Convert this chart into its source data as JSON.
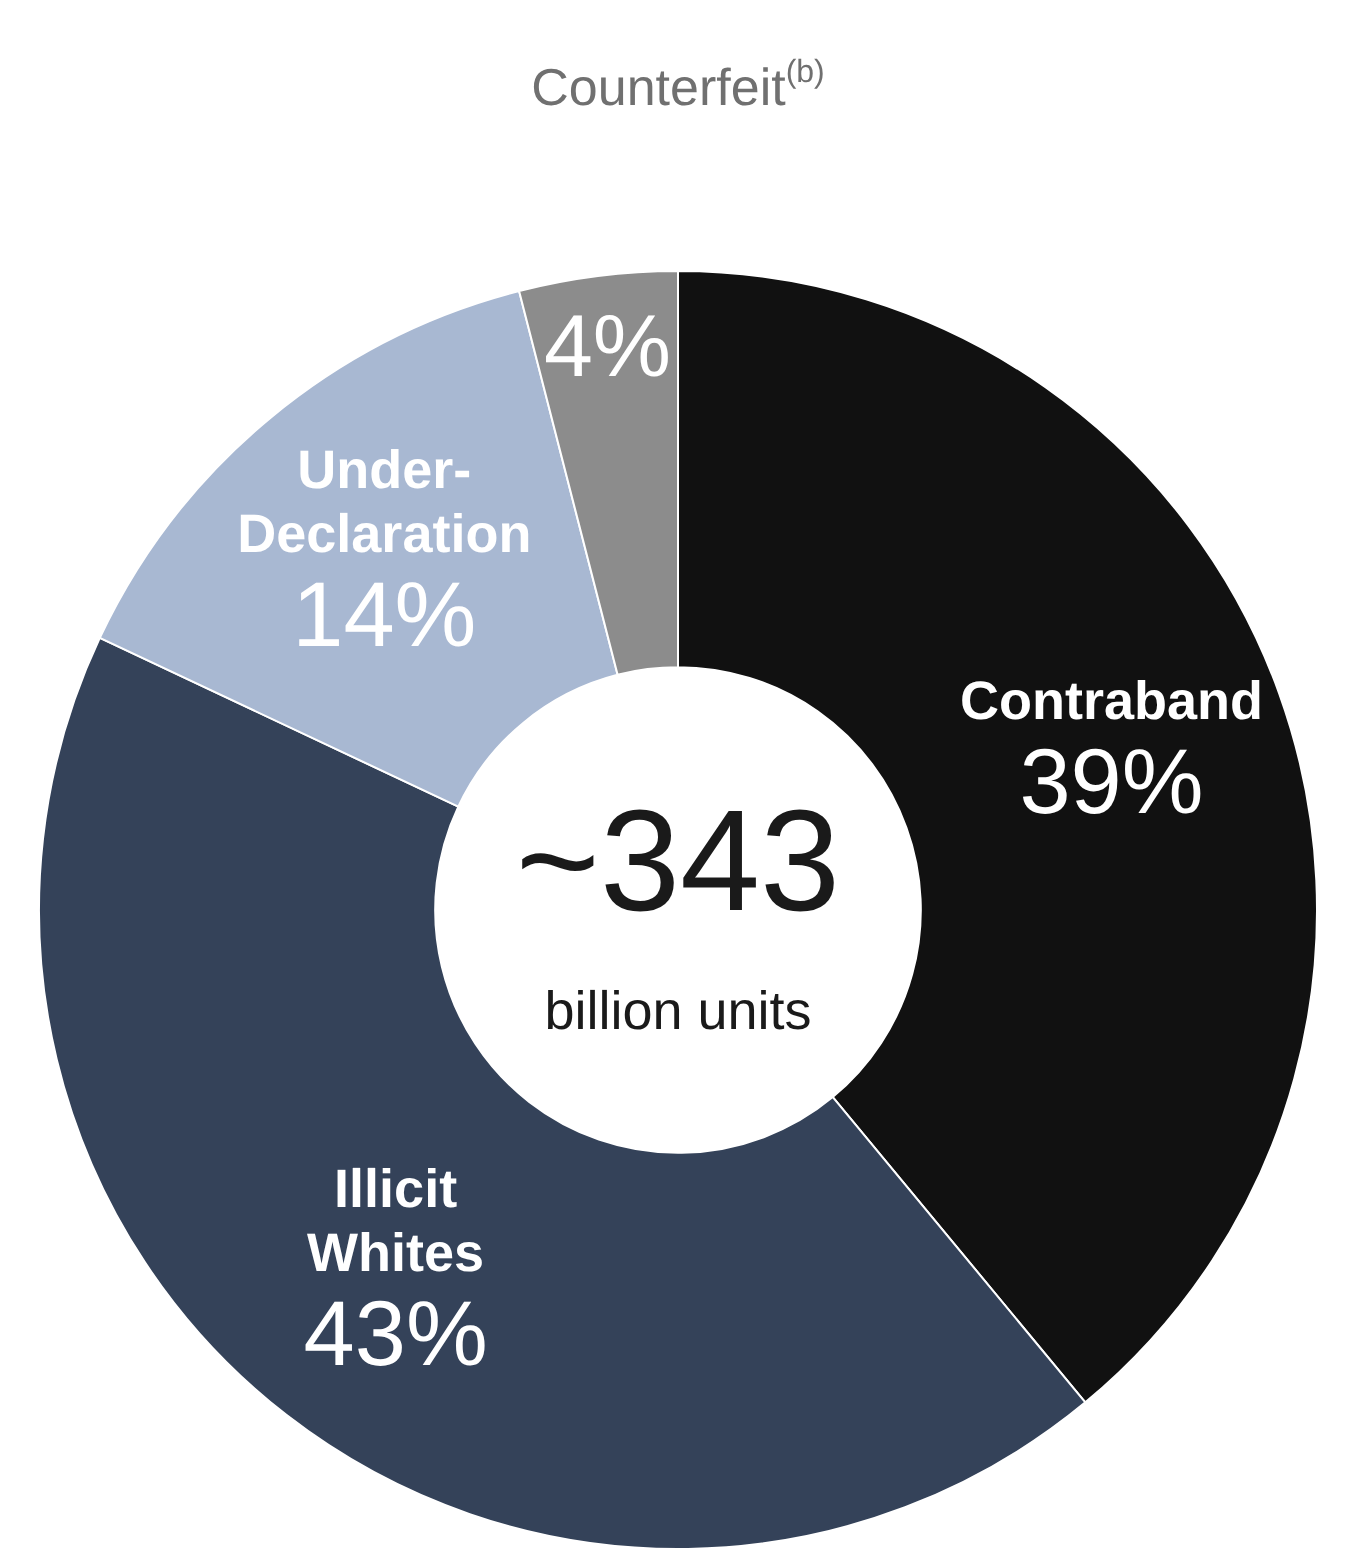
{
  "chart_data": {
    "type": "donut",
    "categories": [
      "Contraband",
      "Illicit Whites",
      "Under-Declaration",
      "Counterfeit$^{(b)}$"
    ],
    "values": [
      39,
      43,
      14,
      4
    ],
    "colors": [
      "#111111",
      "#344259",
      "#a8b8d2",
      "#8c8c8c"
    ],
    "value_labels": [
      "39%",
      "43%",
      "14%",
      "4%"
    ],
    "annotations": [
      "~343",
      "billion units"
    ],
    "legend": false
  }
}
